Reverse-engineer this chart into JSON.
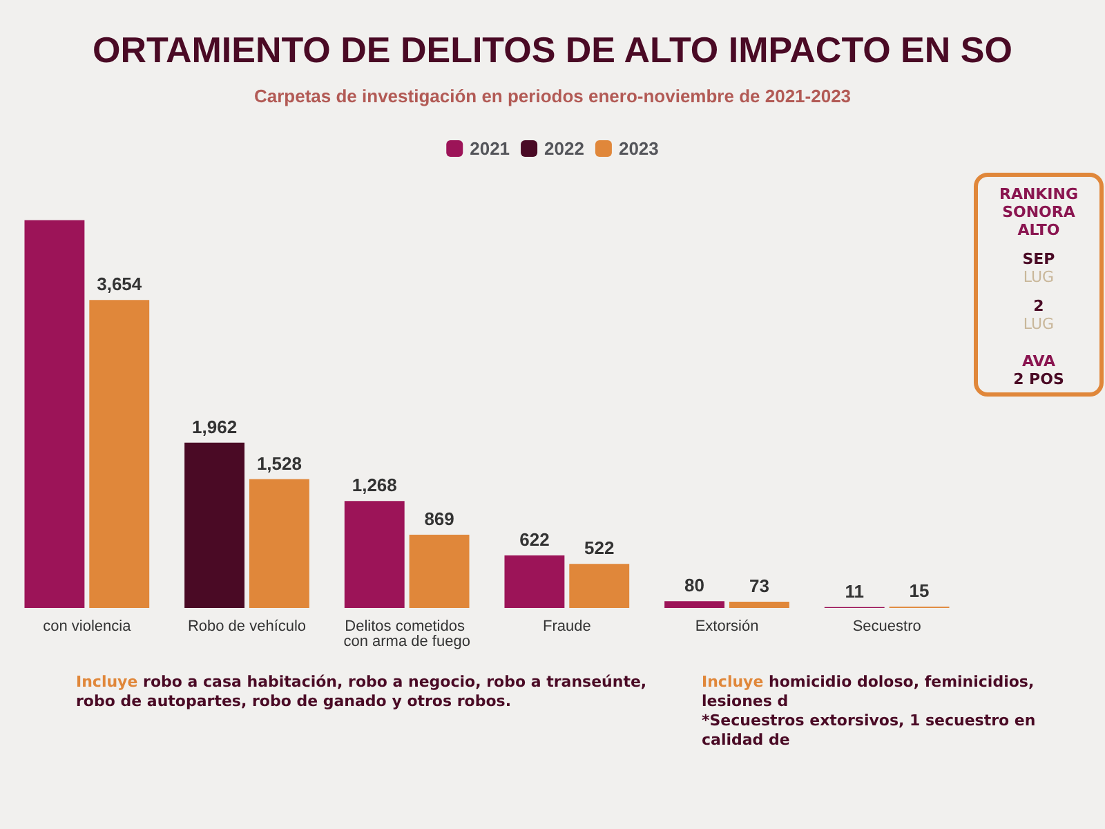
{
  "chart_data": {
    "type": "bar",
    "title": "ORTAMIENTO DE DELITOS DE ALTO IMPACTO EN SO",
    "subtitle": "Carpetas de investigación en periodos enero-noviembre de 2021-2023",
    "categories": [
      "con violencia",
      "Robo de vehículo",
      "Delitos cometidos con arma de fuego",
      "Fraude",
      "Extorsión",
      "Secuestro"
    ],
    "series": [
      {
        "name": "2021",
        "color": "#9c1458",
        "values": [
          4600,
          null,
          1268,
          622,
          80,
          11
        ],
        "value_labels": [
          null,
          null,
          "1,268",
          "622",
          "80",
          "11"
        ]
      },
      {
        "name": "2022",
        "color": "#4a0a25",
        "values": [
          null,
          1962,
          null,
          null,
          null,
          null
        ],
        "value_labels": [
          null,
          "1,962",
          null,
          null,
          null,
          null
        ]
      },
      {
        "name": "2023",
        "color": "#e0873a",
        "values": [
          3654,
          1528,
          869,
          522,
          73,
          15
        ],
        "value_labels": [
          "3,654",
          "1,528",
          "869",
          "522",
          "73",
          "15"
        ]
      }
    ],
    "legend": "top",
    "annotations": [
      "RANKING",
      "SONORA",
      "ALTO",
      "SEP",
      "LUG",
      "2",
      "LUG",
      "AVA",
      "2 POS",
      "Incluye robo a casa habitación, robo a negocio, robo a transeúnte, robo de autopartes, robo de ganado y otros robos.",
      "Incluye homicidio doloso, feminicidios, lesiones d",
      "*Secuestros extorsivos, 1 secuestro en calidad de"
    ]
  }
}
